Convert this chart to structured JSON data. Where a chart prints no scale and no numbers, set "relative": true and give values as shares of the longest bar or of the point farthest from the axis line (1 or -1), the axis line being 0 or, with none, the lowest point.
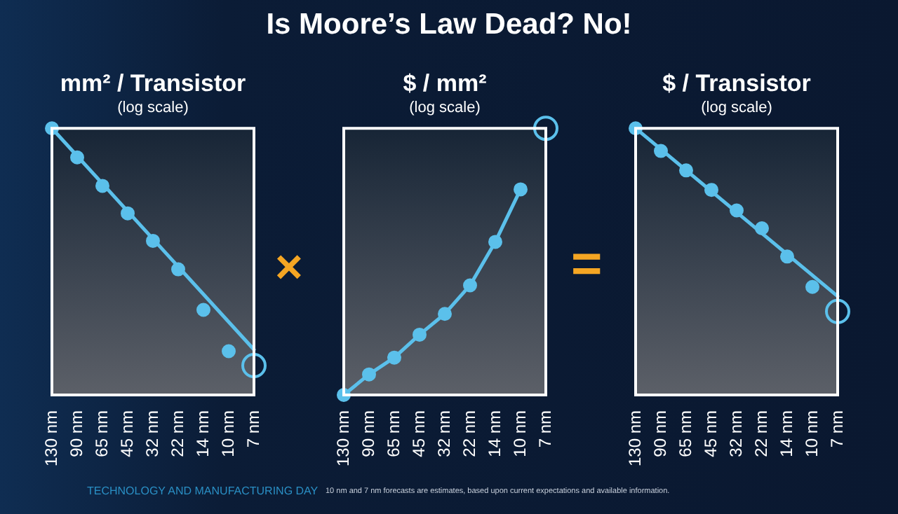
{
  "chart_data": [
    {
      "type": "scatter",
      "title": "mm² / Transistor",
      "subtitle": "(log scale)",
      "categories": [
        "130 nm",
        "90 nm",
        "65 nm",
        "45 nm",
        "32 nm",
        "22 nm",
        "14 nm",
        "10 nm",
        "7 nm"
      ],
      "relative": true,
      "marker": "circle",
      "series": [
        {
          "type": "line",
          "x": [
            "130 nm",
            "7 nm"
          ],
          "values": [
            1,
            0.17
          ],
          "color": "#5bc0eb",
          "marker": "none"
        },
        {
          "type": "scatter",
          "values": [
            1,
            0.891,
            0.784,
            0.681,
            0.578,
            0.471,
            0.319,
            0.164,
            null
          ],
          "color": "#5bc0eb"
        },
        {
          "type": "scatter",
          "x": [
            "7 nm"
          ],
          "values": [
            0.11
          ],
          "color": "#5bc0eb"
        }
      ]
    },
    {
      "type": "line",
      "title": "$ / mm²",
      "subtitle": "(log scale)",
      "categories": [
        "130 nm",
        "90 nm",
        "65 nm",
        "45 nm",
        "32 nm",
        "22 nm",
        "14 nm",
        "10 nm",
        "7 nm"
      ],
      "relative": true,
      "marker": "circle",
      "series": [
        {
          "type": "line",
          "values": [
            0,
            0.077,
            0.14,
            0.226,
            0.304,
            0.411,
            0.574,
            0.771,
            null
          ],
          "color": "#5bc0eb"
        },
        {
          "type": "scatter",
          "x": [
            "7 nm"
          ],
          "values": [
            1
          ],
          "color": "#5bc0eb"
        }
      ]
    },
    {
      "type": "scatter",
      "title": "$ / Transistor",
      "subtitle": "(log scale)",
      "categories": [
        "130 nm",
        "90 nm",
        "65 nm",
        "45 nm",
        "32 nm",
        "22 nm",
        "14 nm",
        "10 nm",
        "7 nm"
      ],
      "relative": true,
      "marker": "circle",
      "series": [
        {
          "type": "line",
          "x": [
            "130 nm",
            "7 nm"
          ],
          "values": [
            1,
            0.37
          ],
          "color": "#5bc0eb",
          "marker": "none"
        },
        {
          "type": "scatter",
          "values": [
            1,
            0.915,
            0.842,
            0.769,
            0.692,
            0.625,
            0.519,
            0.405,
            null
          ],
          "color": "#5bc0eb"
        },
        {
          "type": "scatter",
          "x": [
            "7 nm"
          ],
          "values": [
            0.313
          ],
          "color": "#5bc0eb"
        }
      ]
    },
    {
      "type": "other",
      "title": "Is Moore’s Law Dead? No!",
      "annotations": [
        "×",
        "=",
        "TECHNOLOGY AND MANUFACTURING DAY",
        "10 nm and 7 nm forecasts are estimates, based upon current expectations and available information."
      ]
    }
  ]
}
